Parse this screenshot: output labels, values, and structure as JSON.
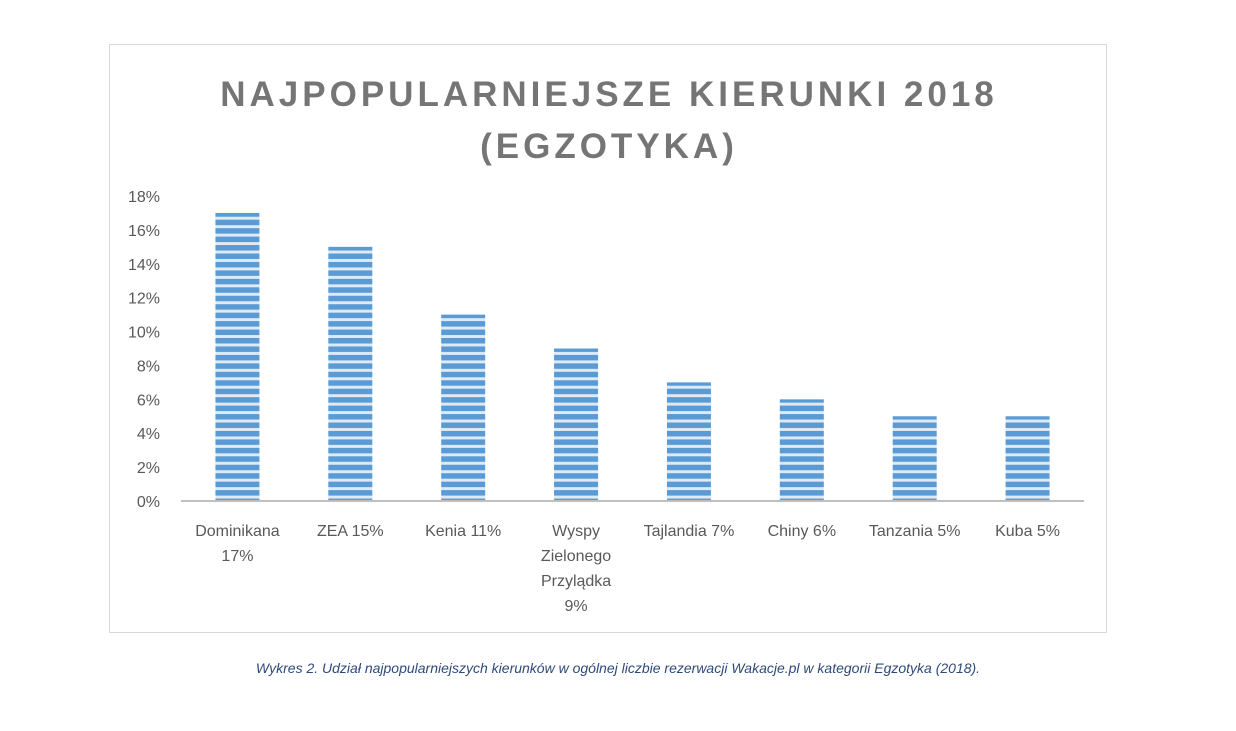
{
  "chart_data": {
    "type": "bar",
    "title_lines": [
      "NAJPOPULARNIEJSZE KIERUNKI 2018",
      "(EGZOTYKA)"
    ],
    "categories": [
      [
        "Dominikana",
        "17%"
      ],
      [
        "ZEA 15%"
      ],
      [
        "Kenia 11%"
      ],
      [
        "Wyspy",
        "Zielonego",
        "Przylądka",
        "9%"
      ],
      [
        "Tajlandia 7%"
      ],
      [
        "Chiny 6%"
      ],
      [
        "Tanzania 5%"
      ],
      [
        "Kuba 5%"
      ]
    ],
    "values": [
      17,
      15,
      11,
      9,
      7,
      6,
      5,
      5
    ],
    "y_ticks": [
      "0%",
      "2%",
      "4%",
      "6%",
      "8%",
      "10%",
      "12%",
      "14%",
      "16%",
      "18%"
    ],
    "ylim": [
      0,
      18
    ],
    "grid": false,
    "bar_color": "#5b9bd5",
    "bar_stripe_color": "#deebf7"
  },
  "caption": "Wykres 2. Udział najpopularniejszych kierunków w ogólnej liczbie rezerwacji Wakacje.pl w kategorii Egzotyka (2018)."
}
